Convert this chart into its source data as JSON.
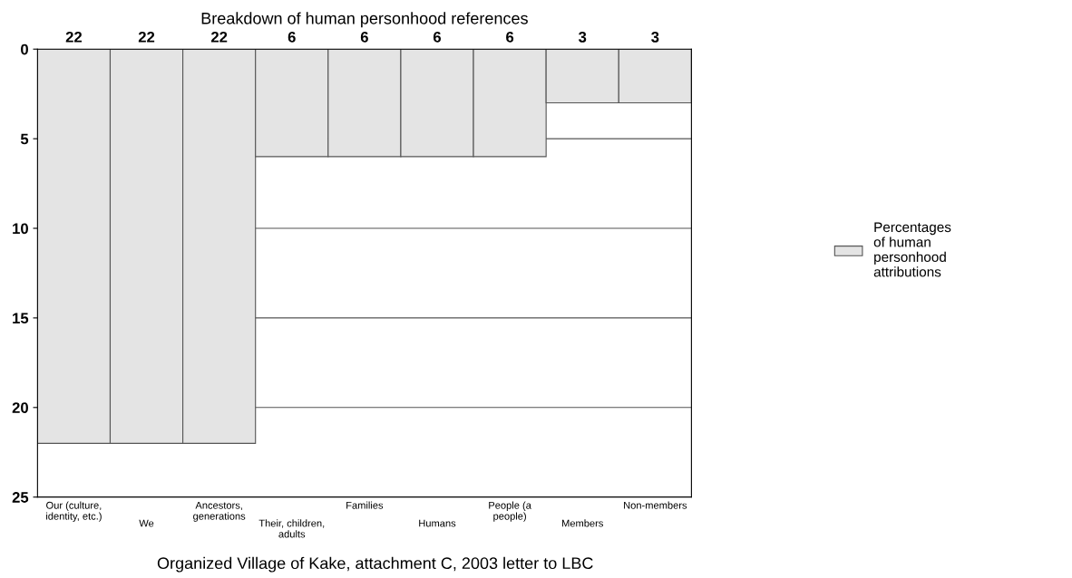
{
  "chart_data": {
    "type": "bar",
    "title": "Breakdown of human personhood references",
    "categories": [
      "Our (culture,\nidentity, etc.)",
      "We",
      "Ancestors,\ngenerations",
      "Their, children,\nadults",
      "Families",
      "Humans",
      "People (a\npeople)",
      "Members",
      "Non-members"
    ],
    "series": [
      {
        "name": "Percentages\nof human\npersonhood\nattributions",
        "color": "#e4e4e4",
        "values": [
          22,
          22,
          22,
          6,
          6,
          6,
          6,
          3,
          3
        ]
      }
    ],
    "ylim": [
      25,
      0
    ],
    "yticks": [
      0,
      5,
      10,
      15,
      20,
      25
    ],
    "grid": "y",
    "legend": "right",
    "data_labels": true,
    "annotations": [
      "Organized Village of Kake, attachment C, 2003 letter to LBC"
    ]
  }
}
